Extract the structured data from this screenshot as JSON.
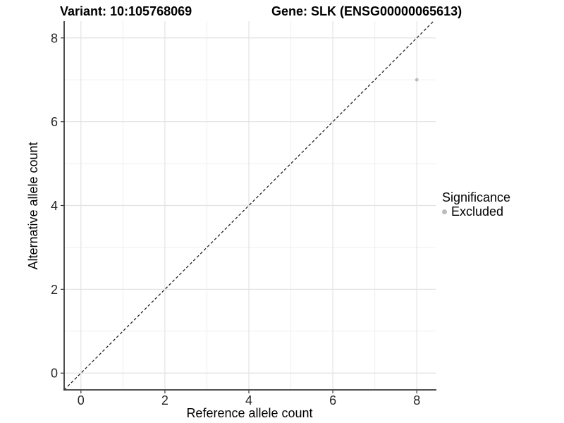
{
  "header": {
    "variant_title": "Variant: 10:105768069",
    "gene_title": "Gene: SLK (ENSG00000065613)"
  },
  "axes": {
    "x_label": "Reference allele count",
    "y_label": "Alternative allele count"
  },
  "legend": {
    "title": "Significance",
    "entries": [
      {
        "label": "Excluded",
        "color": "#bcbcbc"
      }
    ]
  },
  "chart_data": {
    "type": "scatter",
    "title": "Variant: 10:105768069   Gene: SLK (ENSG00000065613)",
    "xlabel": "Reference allele count",
    "ylabel": "Alternative allele count",
    "xlim": [
      -0.4,
      8.45
    ],
    "ylim": [
      -0.4,
      8.4
    ],
    "xticks": [
      0,
      2,
      4,
      6,
      8
    ],
    "yticks": [
      0,
      2,
      4,
      6,
      8
    ],
    "minor_grid_x": [
      1,
      3,
      5,
      7
    ],
    "minor_grid_y": [
      1,
      3,
      5,
      7
    ],
    "grid": true,
    "legend_position": "right",
    "series": [
      {
        "name": "Excluded",
        "color": "#bcbcbc",
        "point_radius": 2.4,
        "points": [
          {
            "x": 8,
            "y": 7
          }
        ]
      }
    ],
    "reference_line": {
      "type": "identity",
      "slope": 1,
      "intercept": 0,
      "style": "dashed",
      "color": "#141414"
    },
    "colors": {
      "grid_major": "#e3e3e3",
      "grid_minor": "#efefef",
      "axis_line": "#3a3a3a",
      "tick_mark": "#333333",
      "tick_text": "#262626"
    }
  }
}
